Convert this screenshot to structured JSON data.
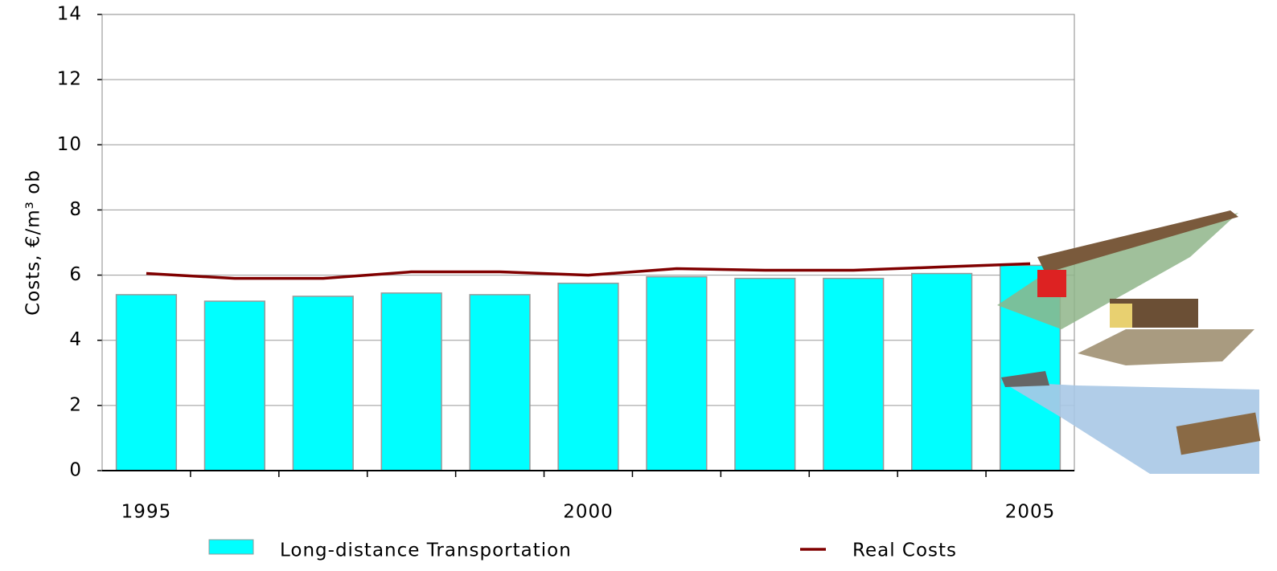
{
  "chart_data": {
    "type": "bar",
    "y_label": "Costs, €/m³ ob",
    "categories": [
      "1995",
      null,
      null,
      null,
      null,
      "2000",
      null,
      null,
      null,
      null,
      "2005"
    ],
    "series": [
      {
        "name": "Long-distance Transportation",
        "type": "bar",
        "color": "#00ffff",
        "values": [
          5.4,
          5.2,
          5.35,
          5.45,
          5.4,
          5.75,
          5.95,
          5.9,
          5.9,
          6.05,
          6.3
        ]
      },
      {
        "name": "Real Costs",
        "type": "line",
        "color": "#800000",
        "values": [
          6.05,
          5.9,
          5.9,
          6.1,
          6.1,
          6.0,
          6.2,
          6.15,
          6.15,
          6.25,
          6.35
        ]
      }
    ],
    "ylim": [
      0,
      14
    ],
    "yticks": [
      0,
      2,
      4,
      6,
      8,
      10,
      12,
      14
    ],
    "grid": true,
    "legend": "bottom"
  }
}
